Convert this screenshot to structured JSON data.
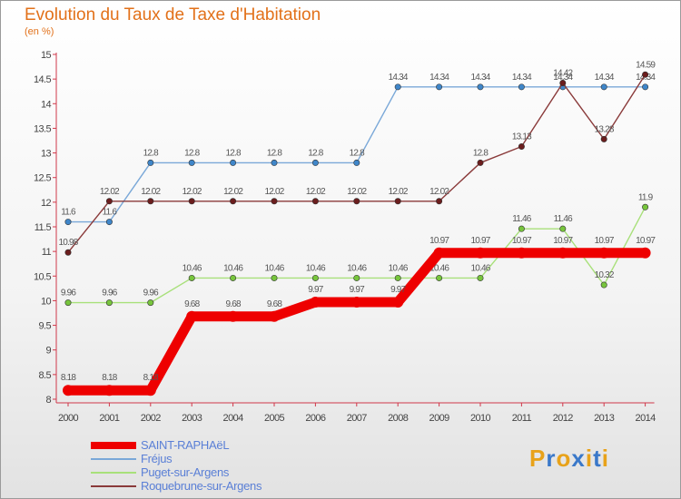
{
  "chart_data": {
    "type": "line",
    "title": "Evolution du Taux de Taxe d'Habitation",
    "subtitle": "(en %)",
    "x": [
      "2000",
      "2001",
      "2002",
      "2003",
      "2004",
      "2005",
      "2006",
      "2007",
      "2008",
      "2009",
      "2010",
      "2011",
      "2012",
      "2013",
      "2014"
    ],
    "ylim": [
      8,
      15
    ],
    "yticks": [
      "8",
      "8.5",
      "9",
      "9.5",
      "10",
      "10.5",
      "11",
      "11.5",
      "12",
      "12.5",
      "13",
      "13.5",
      "14",
      "14.5",
      "15"
    ],
    "grid": false,
    "legend_position": "bottom-left",
    "series": [
      {
        "name": "SAINT-RAPHAëL",
        "color": "#ee0000",
        "point_color": "#ee0000",
        "values": [
          8.18,
          8.18,
          8.18,
          9.68,
          9.68,
          9.68,
          9.97,
          9.97,
          9.97,
          10.97,
          10.97,
          10.97,
          10.97,
          10.97,
          10.97
        ],
        "labels": [
          "8.18",
          "8.18",
          "8.18",
          "9.68",
          "9.68",
          "9.68",
          "9.97",
          "9.97",
          "9.97",
          "10.97",
          "10.97",
          "10.97",
          "10.97",
          "10.97",
          "10.97"
        ]
      },
      {
        "name": "Fréjus",
        "color": "#7aa8d8",
        "point_color": "#3f86c9",
        "values": [
          11.6,
          11.6,
          12.8,
          12.8,
          12.8,
          12.8,
          12.8,
          12.8,
          14.34,
          14.34,
          14.34,
          14.34,
          14.34,
          14.34,
          14.34
        ],
        "labels": [
          "11.6",
          "11.6",
          "12.8",
          "12.8",
          "12.8",
          "12.8",
          "12.8",
          "12.8",
          "14.34",
          "14.34",
          "14.34",
          "14.34",
          "14.34",
          "14.34",
          "14.34"
        ]
      },
      {
        "name": "Puget-sur-Argens",
        "color": "#a8e07a",
        "point_color": "#77c53c",
        "values": [
          9.96,
          9.96,
          9.96,
          10.46,
          10.46,
          10.46,
          10.46,
          10.46,
          10.46,
          10.46,
          10.46,
          11.46,
          11.46,
          10.32,
          11.9
        ],
        "labels": [
          "9.96",
          "9.96",
          "9.96",
          "10.46",
          "10.46",
          "10.46",
          "10.46",
          "10.46",
          "10.46",
          "10.46",
          "10.46",
          "11.46",
          "11.46",
          "10.32",
          "11.9"
        ]
      },
      {
        "name": "Roquebrune-sur-Argens",
        "color": "#8a3a3a",
        "point_color": "#6b1d1d",
        "values": [
          10.98,
          12.02,
          12.02,
          12.02,
          12.02,
          12.02,
          12.02,
          12.02,
          12.02,
          12.02,
          12.8,
          13.13,
          14.42,
          13.28,
          14.59
        ],
        "labels": [
          "10.98",
          "12.02",
          "12.02",
          "12.02",
          "12.02",
          "12.02",
          "12.02",
          "12.02",
          "12.02",
          "12.02",
          "12.8",
          "13.13",
          "14.42",
          "13.28",
          "14.59"
        ]
      }
    ]
  },
  "logo": {
    "text": "Proxiti",
    "colors": [
      "#e8a21a",
      "#3a78c9",
      "#e8a21a",
      "#3a78c9",
      "#e8a21a",
      "#3a78c9",
      "#e8a21a"
    ]
  }
}
